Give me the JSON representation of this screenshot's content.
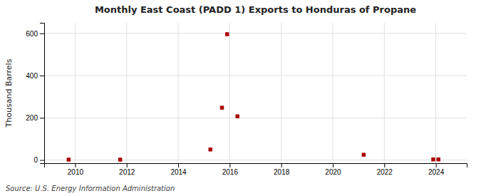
{
  "chart_data": {
    "type": "scatter",
    "title": "Monthly East Coast (PADD 1) Exports to Honduras of Propane",
    "ylabel": "Thousand Barrels",
    "source": "Source: U.S. Energy Information Administration",
    "x": [
      2009.75,
      2011.75,
      2015.25,
      2015.7,
      2015.9,
      2016.3,
      2021.2,
      2023.9,
      2024.1
    ],
    "values": [
      2,
      2,
      50,
      248,
      596,
      207,
      25,
      3,
      3
    ],
    "color": "#aa0000",
    "marker": "square",
    "xlim": [
      2008.8,
      2025.2
    ],
    "ylim": [
      -15,
      650
    ],
    "xticks": [
      2010,
      2012,
      2014,
      2016,
      2018,
      2020,
      2022,
      2024
    ],
    "yticks": [
      0,
      200,
      400,
      600
    ],
    "grid": true
  }
}
